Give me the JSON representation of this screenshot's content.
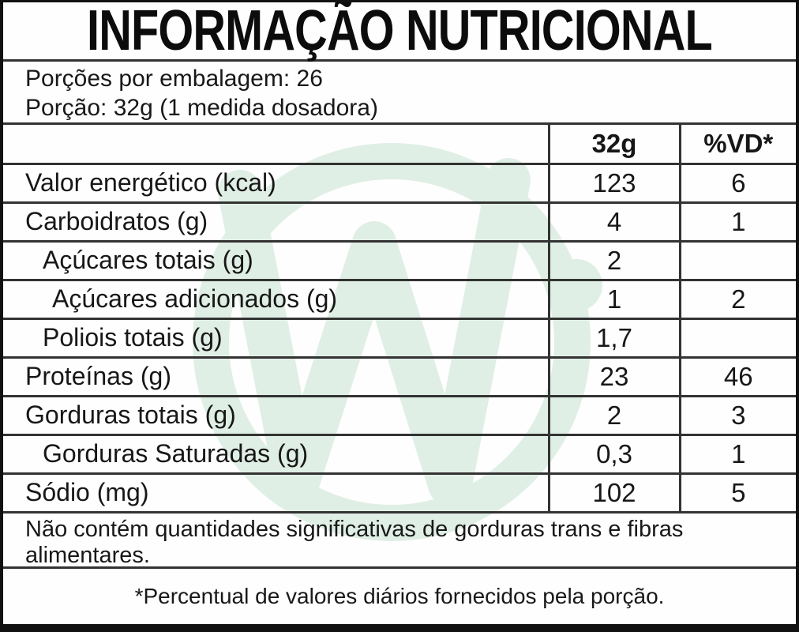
{
  "title": "INFORMAÇÃO NUTRICIONAL",
  "serving_info": {
    "line1": "Porções por embalagem: 26",
    "line2": "Porção: 32g (1 medida dosadora)"
  },
  "table": {
    "columns": [
      "",
      "32g",
      "%VD*"
    ],
    "rows": [
      {
        "label": "Valor energético (kcal)",
        "amount": "123",
        "dv": "6",
        "indent": 0
      },
      {
        "label": "Carboidratos (g)",
        "amount": "4",
        "dv": "1",
        "indent": 0
      },
      {
        "label": "Açúcares totais (g)",
        "amount": "2",
        "dv": "",
        "indent": 1
      },
      {
        "label": "Açúcares adicionados (g)",
        "amount": "1",
        "dv": "2",
        "indent": 2
      },
      {
        "label": "Poliois totais (g)",
        "amount": "1,7",
        "dv": "",
        "indent": 1
      },
      {
        "label": "Proteínas (g)",
        "amount": "23",
        "dv": "46",
        "indent": 0
      },
      {
        "label": "Gorduras totais (g)",
        "amount": "2",
        "dv": "3",
        "indent": 0
      },
      {
        "label": "Gorduras Saturadas (g)",
        "amount": "0,3",
        "dv": "1",
        "indent": 1
      },
      {
        "label": "Sódio (mg)",
        "amount": "102",
        "dv": "5",
        "indent": 0
      }
    ]
  },
  "notes": {
    "no_significant": "Não contém quantidades significativas de gorduras trans e fibras alimentares.",
    "footnote": "*Percentual de valores diários fornecidos pela porção."
  },
  "watermark": {
    "letters": "wi",
    "color": "#e0efe6"
  },
  "colors": {
    "line": "#333333",
    "outer_border": "#111111",
    "text": "#171717",
    "background": "#fefefe",
    "watermark_green": "#e0efe6"
  }
}
